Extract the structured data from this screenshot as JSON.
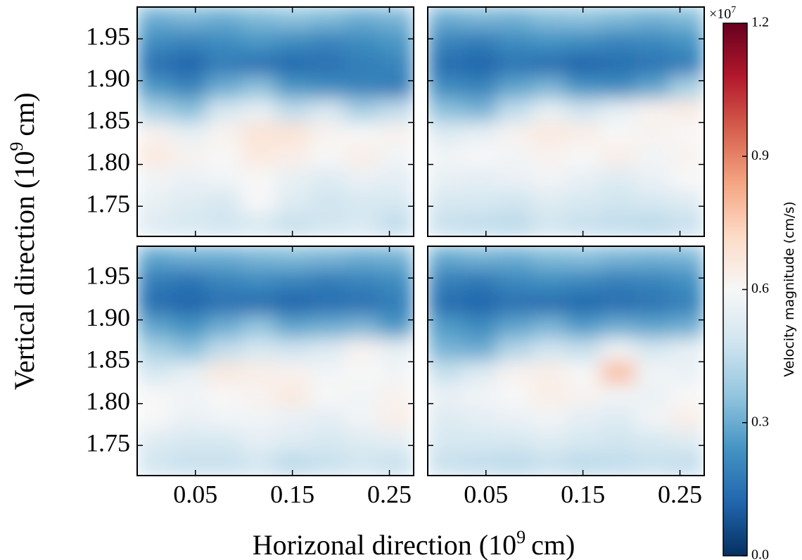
{
  "chart_data": {
    "type": "heatmap",
    "xlabel": [
      "Horizonal direction (10",
      "9",
      "cm)"
    ],
    "ylabel": [
      "Vertical direction (10",
      "9",
      "cm)"
    ],
    "xlim": [
      -0.01,
      0.275
    ],
    "xticks": [
      0.05,
      0.15,
      0.25
    ],
    "ylim": [
      1.714,
      1.988
    ],
    "yticks": [
      1.75,
      {
        "value": 1.8,
        "label": "1.80"
      },
      1.85,
      {
        "value": 1.9,
        "label": "1.90"
      },
      1.95
    ],
    "panels": [
      {
        "z": [
          [
            0.3,
            0.32,
            0.3,
            0.33,
            0.35,
            0.33,
            0.3,
            0.32
          ],
          [
            0.22,
            0.2,
            0.22,
            0.25,
            0.22,
            0.2,
            0.22,
            0.25
          ],
          [
            0.15,
            0.12,
            0.18,
            0.15,
            0.13,
            0.15,
            0.18,
            0.2
          ],
          [
            0.25,
            0.2,
            0.3,
            0.35,
            0.25,
            0.22,
            0.2,
            0.18
          ],
          [
            0.4,
            0.35,
            0.5,
            0.55,
            0.45,
            0.5,
            0.4,
            0.45
          ],
          [
            0.62,
            0.55,
            0.62,
            0.68,
            0.68,
            0.62,
            0.6,
            0.62
          ],
          [
            0.66,
            0.62,
            0.6,
            0.66,
            0.64,
            0.6,
            0.64,
            0.58
          ],
          [
            0.58,
            0.56,
            0.58,
            0.6,
            0.55,
            0.52,
            0.56,
            0.54
          ],
          [
            0.55,
            0.52,
            0.5,
            0.6,
            0.52,
            0.48,
            0.5,
            0.5
          ],
          [
            0.52,
            0.5,
            0.48,
            0.5,
            0.46,
            0.48,
            0.5,
            0.45
          ]
        ]
      },
      {
        "z": [
          [
            0.3,
            0.32,
            0.31,
            0.34,
            0.35,
            0.33,
            0.31,
            0.33
          ],
          [
            0.2,
            0.18,
            0.22,
            0.24,
            0.22,
            0.2,
            0.21,
            0.24
          ],
          [
            0.14,
            0.12,
            0.16,
            0.14,
            0.12,
            0.14,
            0.16,
            0.18
          ],
          [
            0.22,
            0.2,
            0.28,
            0.32,
            0.24,
            0.22,
            0.28,
            0.4
          ],
          [
            0.35,
            0.32,
            0.45,
            0.55,
            0.48,
            0.55,
            0.62,
            0.65
          ],
          [
            0.52,
            0.55,
            0.62,
            0.66,
            0.64,
            0.6,
            0.62,
            0.6
          ],
          [
            0.58,
            0.6,
            0.58,
            0.62,
            0.6,
            0.64,
            0.58,
            0.62
          ],
          [
            0.55,
            0.54,
            0.56,
            0.58,
            0.55,
            0.52,
            0.56,
            0.6
          ],
          [
            0.5,
            0.5,
            0.48,
            0.52,
            0.5,
            0.48,
            0.5,
            0.52
          ],
          [
            0.46,
            0.45,
            0.44,
            0.48,
            0.46,
            0.45,
            0.44,
            0.46
          ]
        ]
      },
      {
        "z": [
          [
            0.28,
            0.3,
            0.3,
            0.32,
            0.33,
            0.32,
            0.3,
            0.31
          ],
          [
            0.18,
            0.16,
            0.2,
            0.22,
            0.2,
            0.18,
            0.2,
            0.22
          ],
          [
            0.14,
            0.12,
            0.15,
            0.14,
            0.12,
            0.14,
            0.15,
            0.18
          ],
          [
            0.28,
            0.24,
            0.3,
            0.36,
            0.28,
            0.3,
            0.32,
            0.25
          ],
          [
            0.4,
            0.35,
            0.45,
            0.5,
            0.48,
            0.52,
            0.62,
            0.55
          ],
          [
            0.5,
            0.55,
            0.66,
            0.64,
            0.62,
            0.58,
            0.6,
            0.58
          ],
          [
            0.6,
            0.58,
            0.6,
            0.62,
            0.66,
            0.6,
            0.58,
            0.62
          ],
          [
            0.6,
            0.56,
            0.58,
            0.58,
            0.56,
            0.54,
            0.58,
            0.64
          ],
          [
            0.52,
            0.5,
            0.5,
            0.54,
            0.52,
            0.5,
            0.52,
            0.54
          ],
          [
            0.48,
            0.46,
            0.46,
            0.48,
            0.44,
            0.46,
            0.48,
            0.46
          ]
        ]
      },
      {
        "z": [
          [
            0.29,
            0.31,
            0.3,
            0.33,
            0.34,
            0.32,
            0.31,
            0.32
          ],
          [
            0.19,
            0.17,
            0.21,
            0.23,
            0.21,
            0.19,
            0.2,
            0.23
          ],
          [
            0.14,
            0.12,
            0.15,
            0.14,
            0.13,
            0.14,
            0.16,
            0.19
          ],
          [
            0.26,
            0.22,
            0.28,
            0.32,
            0.26,
            0.3,
            0.28,
            0.3
          ],
          [
            0.32,
            0.3,
            0.42,
            0.48,
            0.46,
            0.58,
            0.5,
            0.55
          ],
          [
            0.46,
            0.52,
            0.62,
            0.64,
            0.6,
            0.78,
            0.58,
            0.56
          ],
          [
            0.56,
            0.58,
            0.6,
            0.64,
            0.62,
            0.58,
            0.56,
            0.6
          ],
          [
            0.52,
            0.54,
            0.56,
            0.58,
            0.54,
            0.52,
            0.58,
            0.64
          ],
          [
            0.5,
            0.5,
            0.5,
            0.52,
            0.5,
            0.48,
            0.5,
            0.52
          ],
          [
            0.46,
            0.45,
            0.44,
            0.46,
            0.44,
            0.45,
            0.46,
            0.45
          ]
        ]
      }
    ],
    "colorbar": {
      "label": "Velocity magnitude (cm/s)",
      "multiplier": [
        "×10",
        "7"
      ],
      "lim": [
        0,
        1.2
      ],
      "ticks": [
        {
          "value": 0,
          "label": "0.0"
        },
        0.3,
        0.6,
        0.9,
        1.2
      ],
      "colormap": [
        "#053061",
        "#2166ac",
        "#4393c3",
        "#92c5de",
        "#d1e5f0",
        "#f7f7f7",
        "#fddbc7",
        "#f4a582",
        "#d6604d",
        "#b2182b",
        "#67001f"
      ]
    }
  }
}
